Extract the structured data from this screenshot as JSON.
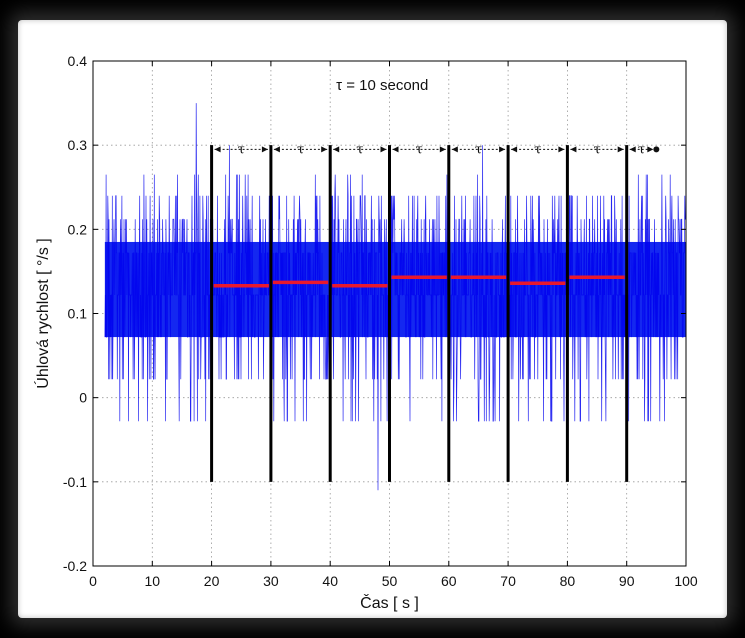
{
  "chart_data": {
    "type": "line",
    "xlabel": "Čas [ s ]",
    "ylabel": "Úhlová rychlost [ °/s ]",
    "xlim": [
      0,
      100
    ],
    "ylim": [
      -0.2,
      0.4
    ],
    "xticks": [
      "0",
      "10",
      "20",
      "30",
      "40",
      "50",
      "60",
      "70",
      "80",
      "90",
      "100"
    ],
    "yticks": [
      "-0.2",
      "-0.1",
      "0",
      "0.1",
      "0.2",
      "0.3",
      "0.4"
    ],
    "grid": true,
    "annotation": "τ  = 10 second",
    "interval_label": "τ",
    "signal": {
      "x_range": [
        2,
        100
      ],
      "levels": [
        -0.028,
        0.022,
        0.072,
        0.122,
        0.172,
        0.212,
        0.24,
        0.265
      ],
      "max_spike": 0.35,
      "min_spike": -0.11,
      "dense_band": [
        0.072,
        0.185
      ],
      "color": "#0000ee"
    },
    "segment_boundaries": [
      20,
      30,
      40,
      50,
      60,
      70,
      80,
      90
    ],
    "boundary_range": [
      -0.1,
      0.3
    ],
    "segment_means": [
      {
        "x0": 20,
        "x1": 30,
        "y": 0.133
      },
      {
        "x0": 30,
        "x1": 40,
        "y": 0.137
      },
      {
        "x0": 40,
        "x1": 50,
        "y": 0.133
      },
      {
        "x0": 50,
        "x1": 60,
        "y": 0.143
      },
      {
        "x0": 60,
        "x1": 70,
        "y": 0.143
      },
      {
        "x0": 70,
        "x1": 80,
        "y": 0.136
      },
      {
        "x0": 80,
        "x1": 90,
        "y": 0.143
      }
    ],
    "tau_arrows": [
      {
        "x0": 20,
        "x1": 30
      },
      {
        "x0": 30,
        "x1": 40
      },
      {
        "x0": 40,
        "x1": 50
      },
      {
        "x0": 50,
        "x1": 60
      },
      {
        "x0": 60,
        "x1": 70
      },
      {
        "x0": 70,
        "x1": 80
      },
      {
        "x0": 80,
        "x1": 90
      },
      {
        "x0": 90,
        "x1": 95
      }
    ],
    "tau_arrow_y": 0.295,
    "colors": {
      "signal": "#0000ee",
      "band": "#1428f0",
      "mean": "#e8182e",
      "boundary": "#000000",
      "grid": "#9a9a9a"
    }
  }
}
